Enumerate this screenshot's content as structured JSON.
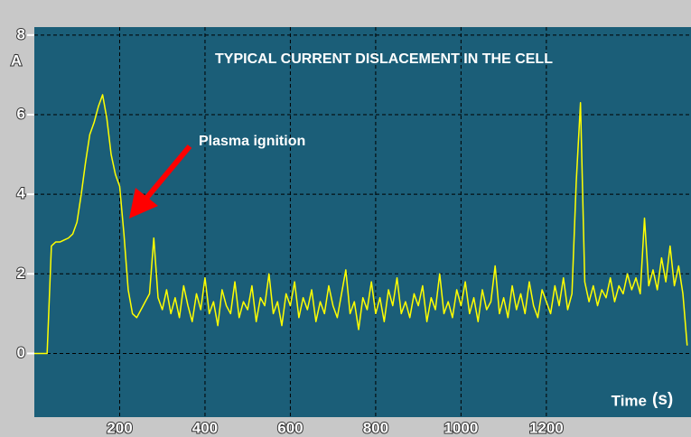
{
  "chart_data": {
    "type": "line",
    "title": "TYPICAL CURRENT DISLACEMENT IN THE CELL",
    "x_label": "Time",
    "x_unit": "(s)",
    "y_label": "A",
    "annotation": "Plasma ignition",
    "x": [
      0,
      10,
      20,
      30,
      40,
      50,
      60,
      70,
      80,
      90,
      100,
      110,
      120,
      130,
      140,
      150,
      160,
      170,
      180,
      190,
      200,
      210,
      220,
      230,
      240,
      250,
      260,
      270,
      280,
      290,
      300,
      310,
      320,
      330,
      340,
      350,
      360,
      370,
      380,
      390,
      400,
      410,
      420,
      430,
      440,
      450,
      460,
      470,
      480,
      490,
      500,
      510,
      520,
      530,
      540,
      550,
      560,
      570,
      580,
      590,
      600,
      610,
      620,
      630,
      640,
      650,
      660,
      670,
      680,
      690,
      700,
      710,
      720,
      730,
      740,
      750,
      760,
      770,
      780,
      790,
      800,
      810,
      820,
      830,
      840,
      850,
      860,
      870,
      880,
      890,
      900,
      910,
      920,
      930,
      940,
      950,
      960,
      970,
      980,
      990,
      1000,
      1010,
      1020,
      1030,
      1040,
      1050,
      1060,
      1070,
      1080,
      1090,
      1100,
      1110,
      1120,
      1130,
      1140,
      1150,
      1160,
      1170,
      1180,
      1190,
      1200,
      1210,
      1220,
      1230,
      1240,
      1250,
      1260,
      1270,
      1280,
      1290,
      1300,
      1310,
      1320,
      1330,
      1340,
      1350,
      1360,
      1370,
      1380,
      1390,
      1400,
      1410,
      1420,
      1430,
      1440,
      1450,
      1460,
      1470,
      1480,
      1490,
      1500,
      1510,
      1520,
      1530
    ],
    "series": [
      {
        "color": "#ffff00",
        "values": [
          0,
          0,
          0,
          0,
          2.7,
          2.8,
          2.8,
          2.85,
          2.9,
          3.0,
          3.3,
          4.0,
          4.8,
          5.5,
          5.8,
          6.2,
          6.5,
          5.9,
          5.0,
          4.5,
          4.2,
          3.0,
          1.6,
          1.0,
          0.9,
          1.1,
          1.3,
          1.5,
          2.9,
          1.4,
          1.1,
          1.6,
          1.0,
          1.4,
          0.9,
          1.7,
          1.2,
          0.8,
          1.5,
          1.1,
          1.9,
          1.0,
          1.3,
          0.7,
          1.6,
          1.2,
          1.0,
          1.8,
          0.9,
          1.3,
          1.1,
          1.7,
          0.8,
          1.4,
          1.2,
          2.0,
          1.0,
          1.3,
          0.7,
          1.5,
          1.2,
          1.8,
          0.9,
          1.4,
          1.1,
          1.6,
          0.8,
          1.3,
          1.0,
          1.7,
          1.2,
          0.9,
          1.5,
          2.1,
          1.0,
          1.3,
          0.6,
          1.4,
          1.1,
          1.8,
          1.0,
          1.4,
          0.8,
          1.6,
          1.2,
          1.9,
          1.0,
          1.3,
          0.9,
          1.5,
          1.2,
          1.7,
          0.8,
          1.4,
          1.1,
          2.0,
          1.0,
          1.3,
          0.9,
          1.6,
          1.2,
          1.8,
          1.0,
          1.4,
          0.8,
          1.6,
          1.1,
          1.3,
          2.2,
          1.0,
          1.4,
          0.9,
          1.7,
          1.1,
          1.5,
          1.0,
          1.8,
          1.2,
          0.9,
          1.6,
          1.3,
          1.0,
          1.7,
          1.2,
          1.9,
          1.1,
          1.5,
          4.3,
          6.3,
          1.8,
          1.3,
          1.7,
          1.2,
          1.6,
          1.4,
          1.9,
          1.3,
          1.7,
          1.5,
          2.0,
          1.6,
          1.9,
          1.5,
          3.4,
          1.7,
          2.1,
          1.6,
          2.4,
          1.8,
          2.7,
          1.7,
          2.2,
          1.5,
          0.2
        ]
      }
    ],
    "xlim": [
      0,
      1539
    ],
    "ylim": [
      -1.6,
      8.2
    ],
    "xticks": [
      200,
      400,
      600,
      800,
      1000,
      1200
    ],
    "yticks": [
      0,
      2,
      4,
      6,
      8
    ],
    "grid": true
  }
}
